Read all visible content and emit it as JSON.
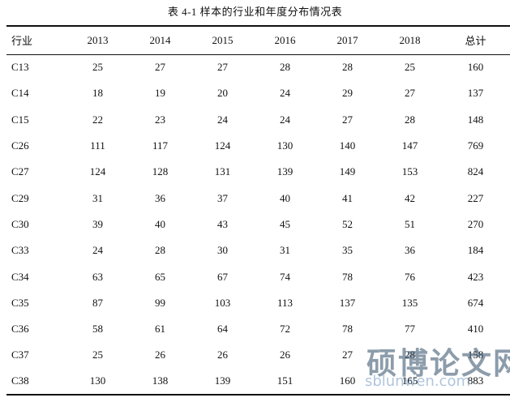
{
  "caption": "表 4-1  样本的行业和年度分布情况表",
  "table": {
    "headers": [
      "行业",
      "2013",
      "2014",
      "2015",
      "2016",
      "2017",
      "2018",
      "总计"
    ],
    "rows": [
      [
        "C13",
        "25",
        "27",
        "27",
        "28",
        "28",
        "25",
        "160"
      ],
      [
        "C14",
        "18",
        "19",
        "20",
        "24",
        "29",
        "27",
        "137"
      ],
      [
        "C15",
        "22",
        "23",
        "24",
        "24",
        "27",
        "28",
        "148"
      ],
      [
        "C26",
        "111",
        "117",
        "124",
        "130",
        "140",
        "147",
        "769"
      ],
      [
        "C27",
        "124",
        "128",
        "131",
        "139",
        "149",
        "153",
        "824"
      ],
      [
        "C29",
        "31",
        "36",
        "37",
        "40",
        "41",
        "42",
        "227"
      ],
      [
        "C30",
        "39",
        "40",
        "43",
        "45",
        "52",
        "51",
        "270"
      ],
      [
        "C33",
        "24",
        "28",
        "30",
        "31",
        "35",
        "36",
        "184"
      ],
      [
        "C34",
        "63",
        "65",
        "67",
        "74",
        "78",
        "76",
        "423"
      ],
      [
        "C35",
        "87",
        "99",
        "103",
        "113",
        "137",
        "135",
        "674"
      ],
      [
        "C36",
        "58",
        "61",
        "64",
        "72",
        "78",
        "77",
        "410"
      ],
      [
        "C37",
        "25",
        "26",
        "26",
        "26",
        "27",
        "28",
        "158"
      ],
      [
        "C38",
        "130",
        "138",
        "139",
        "151",
        "160",
        "165",
        "883"
      ]
    ]
  },
  "watermark": {
    "main": "硕博论文网",
    "url": "sblunwen.com"
  }
}
